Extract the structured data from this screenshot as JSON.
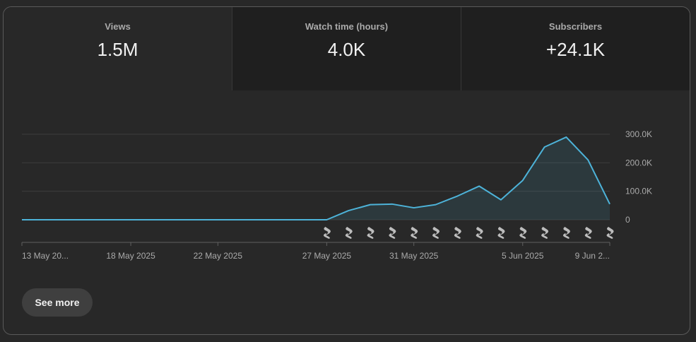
{
  "tabs": [
    {
      "label": "Views",
      "value": "1.5M"
    },
    {
      "label": "Watch time (hours)",
      "value": "4.0K"
    },
    {
      "label": "Subscribers",
      "value": "+24.1K"
    }
  ],
  "see_more_label": "See more",
  "colors": {
    "line": "#4db3d9",
    "area": "rgba(77,179,217,0.12)",
    "grid": "#3d3d3d"
  },
  "chart_data": {
    "type": "area",
    "title": "",
    "series": [
      {
        "values": [
          0,
          0,
          0,
          0,
          0,
          0,
          0,
          0,
          0,
          0,
          0,
          0,
          0,
          0,
          0,
          32000,
          53000,
          55000,
          42000,
          53000,
          83000,
          118000,
          70000,
          138000,
          255000,
          290000,
          210000,
          55000
        ]
      }
    ],
    "x_tick_labels": [
      "13 May 20...",
      "18 May 2025",
      "22 May 2025",
      "27 May 2025",
      "31 May 2025",
      "5 Jun 2025",
      "9 Jun 2..."
    ],
    "y_ticks": [
      0,
      100000,
      200000,
      300000
    ],
    "y_tick_labels": [
      "0",
      "100.0K",
      "200.0K",
      "300.0K"
    ],
    "ylim": [
      0,
      300000
    ],
    "grid": true,
    "video_marker_count": 14,
    "video_marker_icon": "shorts-icon"
  }
}
